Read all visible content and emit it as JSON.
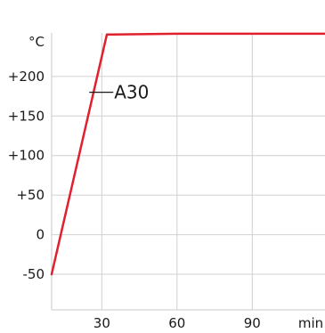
{
  "chart_data": {
    "type": "line",
    "ylabel": "°C",
    "xlabel": "min",
    "x_ticks": [
      {
        "value": 30,
        "label": "30"
      },
      {
        "value": 60,
        "label": "60"
      },
      {
        "value": 90,
        "label": "90"
      }
    ],
    "y_ticks": [
      {
        "value": 200,
        "label": "+200"
      },
      {
        "value": 150,
        "label": "+150"
      },
      {
        "value": 100,
        "label": "+100"
      },
      {
        "value": 50,
        "label": "+50"
      },
      {
        "value": 0,
        "label": "0"
      },
      {
        "value": -50,
        "label": "-50"
      }
    ],
    "xlim": [
      10,
      119
    ],
    "ylim": [
      -95,
      255
    ],
    "grid": true,
    "series": [
      {
        "color": "#e0202c",
        "x": [
          10,
          32,
          60,
          90,
          119
        ],
        "y": [
          -50,
          253,
          254,
          254,
          254
        ]
      }
    ],
    "annotations": [
      {
        "text": "A30",
        "x": 25,
        "y": 180
      }
    ]
  }
}
